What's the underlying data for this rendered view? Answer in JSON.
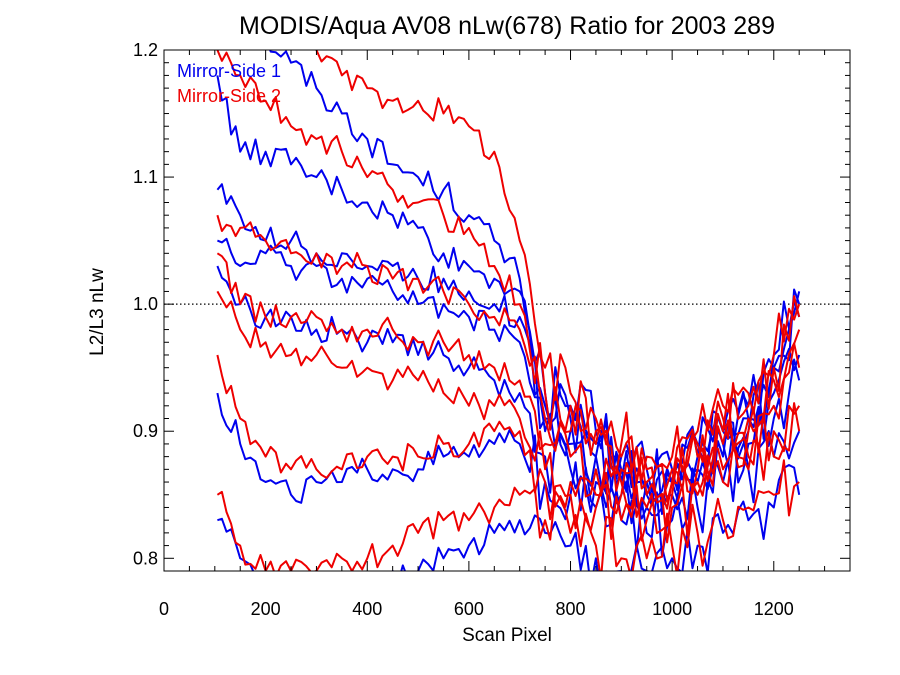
{
  "chart_data": {
    "type": "line",
    "title": "MODIS/Aqua AV08 nLw(678) Ratio for 2003 289",
    "xlabel": "Scan Pixel",
    "ylabel": "L2/L3 nLw",
    "xlim": [
      0,
      1350
    ],
    "ylim": [
      0.79,
      1.2
    ],
    "x_ticks": [
      0,
      200,
      400,
      600,
      800,
      1000,
      1200
    ],
    "x_tick_labels": [
      "0",
      "200",
      "400",
      "600",
      "800",
      "1000",
      "1200"
    ],
    "y_ticks": [
      0.8,
      0.9,
      1.0,
      1.1,
      1.2
    ],
    "y_tick_labels": [
      "0.8",
      "0.9",
      "1.0",
      "1.1",
      "1.2"
    ],
    "reference_line": {
      "y": 1.0,
      "style": "dotted"
    },
    "legend": {
      "placement": "top-left",
      "entries": [
        "Mirror-Side 1",
        "Mirror-Side 2"
      ]
    },
    "colors": {
      "mirror_side_1": "#0000ee",
      "mirror_side_2": "#ee0000"
    },
    "x": [
      105,
      150,
      200,
      250,
      300,
      350,
      400,
      450,
      500,
      550,
      600,
      650,
      700,
      750,
      800,
      850,
      900,
      950,
      1000,
      1050,
      1100,
      1150,
      1200,
      1250
    ],
    "series": [
      {
        "name": "Mirror-Side 1",
        "color": "#0000ee",
        "values": [
          1.25,
          1.23,
          1.21,
          1.19,
          1.17,
          1.15,
          1.13,
          1.11,
          1.1,
          1.09,
          1.07,
          1.05,
          1.02,
          0.93,
          0.92,
          0.9,
          0.88,
          0.87,
          0.87,
          0.89,
          0.9,
          0.91,
          0.95,
          0.99
        ]
      },
      {
        "name": "Mirror-Side 1",
        "color": "#0000ee",
        "values": [
          1.18,
          1.12,
          1.12,
          1.11,
          1.1,
          1.09,
          1.08,
          1.07,
          1.06,
          1.04,
          1.03,
          1.02,
          1.01,
          0.92,
          0.91,
          0.89,
          0.87,
          0.86,
          0.86,
          0.88,
          0.9,
          0.92,
          0.96,
          1.01
        ]
      },
      {
        "name": "Mirror-Side 1",
        "color": "#0000ee",
        "values": [
          1.09,
          1.07,
          1.05,
          1.05,
          1.04,
          1.04,
          1.03,
          1.03,
          1.02,
          1.02,
          1.01,
          1.0,
          0.99,
          0.91,
          0.9,
          0.88,
          0.87,
          0.86,
          0.86,
          0.88,
          0.9,
          0.91,
          0.95,
          1.0
        ]
      },
      {
        "name": "Mirror-Side 1",
        "color": "#0000ee",
        "values": [
          1.05,
          1.03,
          1.04,
          1.03,
          1.03,
          1.02,
          1.02,
          1.01,
          1.0,
          1.0,
          0.99,
          0.98,
          0.97,
          0.9,
          0.89,
          0.88,
          0.86,
          0.85,
          0.86,
          0.87,
          0.89,
          0.9,
          0.93,
          0.96
        ]
      },
      {
        "name": "Mirror-Side 1",
        "color": "#0000ee",
        "values": [
          1.03,
          1.0,
          0.99,
          0.99,
          0.98,
          0.98,
          0.97,
          0.97,
          0.96,
          0.96,
          0.95,
          0.94,
          0.93,
          0.88,
          0.87,
          0.86,
          0.85,
          0.84,
          0.85,
          0.86,
          0.88,
          0.89,
          0.91,
          0.94
        ]
      },
      {
        "name": "Mirror-Side 1",
        "color": "#0000ee",
        "values": [
          0.93,
          0.89,
          0.86,
          0.85,
          0.86,
          0.86,
          0.87,
          0.87,
          0.87,
          0.88,
          0.88,
          0.89,
          0.89,
          0.86,
          0.85,
          0.84,
          0.83,
          0.82,
          0.83,
          0.84,
          0.86,
          0.87,
          0.88,
          0.9
        ]
      },
      {
        "name": "Mirror-Side 1",
        "color": "#0000ee",
        "values": [
          0.83,
          0.8,
          0.78,
          0.78,
          0.78,
          0.78,
          0.78,
          0.79,
          0.79,
          0.8,
          0.81,
          0.82,
          0.83,
          0.82,
          0.81,
          0.8,
          0.79,
          0.79,
          0.8,
          0.81,
          0.82,
          0.83,
          0.84,
          0.85
        ]
      },
      {
        "name": "Mirror-Side 2",
        "color": "#ee0000",
        "values": [
          1.24,
          1.23,
          1.22,
          1.21,
          1.2,
          1.18,
          1.17,
          1.16,
          1.16,
          1.15,
          1.14,
          1.12,
          1.05,
          0.95,
          0.93,
          0.91,
          0.89,
          0.88,
          0.88,
          0.9,
          0.92,
          0.93,
          0.96,
          1.0
        ]
      },
      {
        "name": "Mirror-Side 2",
        "color": "#ee0000",
        "values": [
          1.2,
          1.18,
          1.16,
          1.14,
          1.13,
          1.12,
          1.1,
          1.09,
          1.08,
          1.07,
          1.06,
          1.03,
          1.0,
          0.93,
          0.92,
          0.9,
          0.88,
          0.87,
          0.87,
          0.89,
          0.91,
          0.92,
          0.95,
          0.99
        ]
      },
      {
        "name": "Mirror-Side 2",
        "color": "#ee0000",
        "values": [
          1.07,
          1.06,
          1.05,
          1.04,
          1.04,
          1.03,
          1.03,
          1.02,
          1.02,
          1.01,
          1.0,
          0.99,
          0.98,
          0.91,
          0.9,
          0.89,
          0.87,
          0.86,
          0.86,
          0.88,
          0.9,
          0.91,
          0.94,
          0.98
        ]
      },
      {
        "name": "Mirror-Side 2",
        "color": "#ee0000",
        "values": [
          1.04,
          1.0,
          0.99,
          0.99,
          0.99,
          0.98,
          0.98,
          0.98,
          0.97,
          0.97,
          0.96,
          0.95,
          0.94,
          0.89,
          0.88,
          0.87,
          0.86,
          0.85,
          0.86,
          0.87,
          0.89,
          0.9,
          0.92,
          0.95
        ]
      },
      {
        "name": "Mirror-Side 2",
        "color": "#ee0000",
        "values": [
          1.01,
          0.98,
          0.97,
          0.96,
          0.96,
          0.95,
          0.95,
          0.94,
          0.94,
          0.93,
          0.92,
          0.92,
          0.91,
          0.87,
          0.86,
          0.85,
          0.85,
          0.84,
          0.85,
          0.86,
          0.87,
          0.88,
          0.9,
          0.92
        ]
      },
      {
        "name": "Mirror-Side 2",
        "color": "#ee0000",
        "values": [
          0.96,
          0.91,
          0.88,
          0.87,
          0.87,
          0.87,
          0.88,
          0.88,
          0.88,
          0.89,
          0.89,
          0.9,
          0.9,
          0.86,
          0.85,
          0.84,
          0.83,
          0.83,
          0.84,
          0.85,
          0.86,
          0.87,
          0.88,
          0.9
        ]
      },
      {
        "name": "Mirror-Side 2",
        "color": "#ee0000",
        "values": [
          0.85,
          0.81,
          0.79,
          0.79,
          0.79,
          0.8,
          0.8,
          0.81,
          0.82,
          0.83,
          0.83,
          0.84,
          0.85,
          0.83,
          0.82,
          0.81,
          0.8,
          0.8,
          0.81,
          0.82,
          0.83,
          0.84,
          0.85,
          0.86
        ]
      }
    ]
  }
}
